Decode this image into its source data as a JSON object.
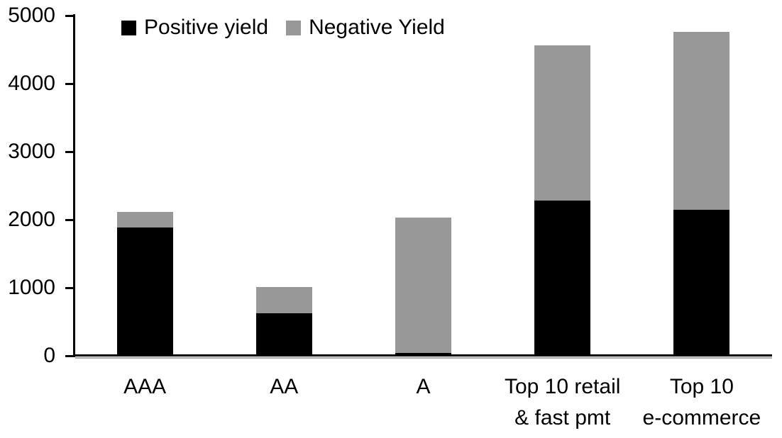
{
  "chart_data": {
    "type": "bar",
    "stacked": true,
    "title": "",
    "xlabel": "",
    "ylabel": "",
    "categories": [
      "AAA",
      "AA",
      "A",
      "Top 10 retail & fast pmt",
      "Top 10 e-commerce"
    ],
    "category_label_lines": [
      [
        "AAA"
      ],
      [
        "AA"
      ],
      [
        "A"
      ],
      [
        "Top 10 retail",
        "& fast pmt"
      ],
      [
        "Top 10",
        "e-commerce"
      ]
    ],
    "series": [
      {
        "name": "Positive yield",
        "color": "#000000",
        "values": [
          1890,
          620,
          45,
          2280,
          2150
        ]
      },
      {
        "name": "Negative Yield",
        "color": "#989898",
        "values": [
          220,
          390,
          1990,
          2280,
          2610
        ]
      }
    ],
    "totals": [
      2110,
      1010,
      2035,
      4560,
      4760
    ],
    "ylim": [
      0,
      5000
    ],
    "yticks": [
      0,
      1000,
      2000,
      3000,
      4000,
      5000
    ],
    "legend_position": "top",
    "grid": false,
    "background_color": "#ffffff",
    "axis_color": "#000000"
  }
}
